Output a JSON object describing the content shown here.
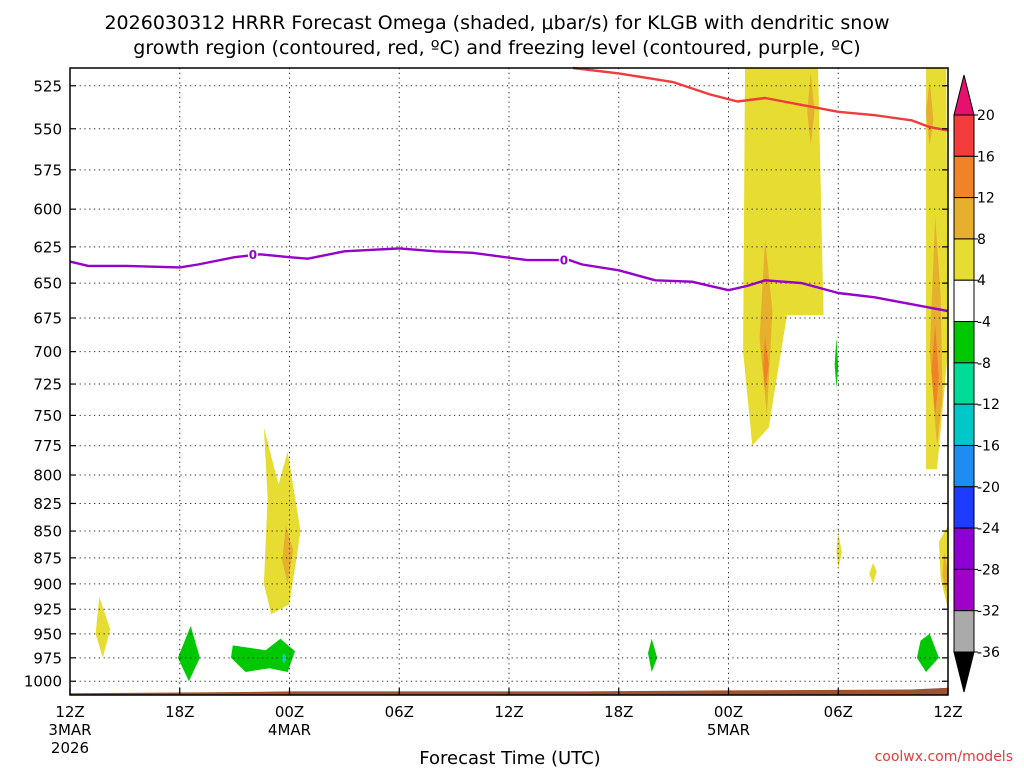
{
  "chart_data": {
    "type": "heatmap",
    "title": [
      "2026030312 HRRR Forecast Omega (shaded, μbar/s) for KLGB with dendritic snow",
      "growth region (contoured, red, ºC) and freezing level (contoured, purple, ºC)"
    ],
    "xlabel": "Forecast Time (UTC)",
    "ylabel": "",
    "x_range_hours": [
      0,
      48
    ],
    "y_range_hpa": [
      515,
      1015
    ],
    "y_scale": "log",
    "grid": true,
    "x_ticks": [
      {
        "hour": 0,
        "label": "12Z",
        "sub1": "3MAR",
        "sub2": "2026"
      },
      {
        "hour": 6,
        "label": "18Z",
        "sub1": "",
        "sub2": ""
      },
      {
        "hour": 12,
        "label": "00Z",
        "sub1": "4MAR",
        "sub2": ""
      },
      {
        "hour": 18,
        "label": "06Z",
        "sub1": "",
        "sub2": ""
      },
      {
        "hour": 24,
        "label": "12Z",
        "sub1": "",
        "sub2": ""
      },
      {
        "hour": 30,
        "label": "18Z",
        "sub1": "",
        "sub2": ""
      },
      {
        "hour": 36,
        "label": "00Z",
        "sub1": "5MAR",
        "sub2": ""
      },
      {
        "hour": 42,
        "label": "06Z",
        "sub1": "",
        "sub2": ""
      },
      {
        "hour": 48,
        "label": "12Z",
        "sub1": "",
        "sub2": ""
      }
    ],
    "y_ticks": [
      "525",
      "550",
      "575",
      "600",
      "625",
      "650",
      "675",
      "700",
      "725",
      "750",
      "775",
      "800",
      "825",
      "850",
      "875",
      "900",
      "925",
      "950",
      "975",
      "1000"
    ],
    "colorbar": {
      "labels": [
        "20",
        "16",
        "12",
        "8",
        "4",
        "-4",
        "-8",
        "-12",
        "-16",
        "-20",
        "-24",
        "-28",
        "-32",
        "-36"
      ],
      "colors": [
        "#e8106e",
        "#f53c3c",
        "#f08228",
        "#e6af2d",
        "#e6dc32",
        "#ffffff",
        "#00c800",
        "#00dc96",
        "#00c8c8",
        "#1e8cf0",
        "#1e3cff",
        "#8c00d2",
        "#a000c8",
        "#aaaaaa",
        "#000000"
      ]
    },
    "series": [
      {
        "name": "dendritic snow growth region (red)",
        "color": "#f03c3c",
        "x": [
          27.5,
          30,
          33,
          35,
          36.5,
          38,
          40,
          42,
          44,
          46,
          47,
          48
        ],
        "y": [
          515,
          518,
          523,
          530,
          534,
          532,
          536,
          540,
          542,
          545,
          549,
          551
        ],
        "label_points": []
      },
      {
        "name": "freezing level (purple)",
        "color": "#9600c8",
        "x": [
          0,
          1,
          3,
          6,
          7,
          9,
          10.4,
          12,
          13,
          15,
          18,
          20,
          22,
          25,
          27.3,
          28,
          30,
          32,
          34,
          36,
          37,
          38,
          40,
          42,
          44,
          46,
          48
        ],
        "y": [
          635,
          638,
          638,
          639,
          637,
          632,
          630,
          632,
          633,
          628,
          626,
          628,
          629,
          634,
          634,
          637,
          641,
          648,
          649,
          655,
          652,
          648,
          650,
          657,
          660,
          665,
          670
        ],
        "label_points": [
          {
            "x": 10.0,
            "y": 630,
            "text": "0"
          },
          {
            "x": 27.0,
            "y": 634,
            "text": "0"
          }
        ]
      }
    ],
    "regions": [
      {
        "color": "#e6dc32",
        "points": [
          [
            36.9,
            515
          ],
          [
            40.9,
            515
          ],
          [
            41.2,
            673
          ],
          [
            39.2,
            673
          ],
          [
            38.2,
            760
          ],
          [
            37.3,
            775
          ],
          [
            36.8,
            700
          ]
        ]
      },
      {
        "color": "#e6dc32",
        "points": [
          [
            46.8,
            515
          ],
          [
            47.9,
            515
          ],
          [
            48.0,
            700
          ],
          [
            47.4,
            795
          ],
          [
            46.8,
            795
          ],
          [
            46.8,
            650
          ]
        ]
      },
      {
        "color": "#e6dc32",
        "points": [
          [
            10.6,
            760
          ],
          [
            11.4,
            808
          ],
          [
            11.9,
            780
          ],
          [
            12.6,
            850
          ],
          [
            12.0,
            920
          ],
          [
            11.0,
            930
          ],
          [
            10.6,
            900
          ],
          [
            10.8,
            820
          ]
        ]
      },
      {
        "color": "#e6dc32",
        "points": [
          [
            1.6,
            913
          ],
          [
            2.2,
            945
          ],
          [
            1.8,
            975
          ],
          [
            1.4,
            950
          ]
        ]
      },
      {
        "color": "#e6dc32",
        "points": [
          [
            47.5,
            860
          ],
          [
            48.0,
            845
          ],
          [
            48.0,
            925
          ],
          [
            47.6,
            895
          ]
        ]
      },
      {
        "color": "#e6dc32",
        "points": [
          [
            42.0,
            852
          ],
          [
            42.2,
            870
          ],
          [
            42.0,
            885
          ],
          [
            41.9,
            868
          ]
        ]
      },
      {
        "color": "#e6dc32",
        "points": [
          [
            43.9,
            880
          ],
          [
            44.1,
            888
          ],
          [
            43.9,
            900
          ],
          [
            43.7,
            890
          ]
        ]
      },
      {
        "color": "#e6af2d",
        "points": [
          [
            40.5,
            518
          ],
          [
            40.7,
            540
          ],
          [
            40.5,
            560
          ],
          [
            40.3,
            540
          ]
        ]
      },
      {
        "color": "#e6af2d",
        "points": [
          [
            38.0,
            620
          ],
          [
            38.4,
            670
          ],
          [
            38.1,
            750
          ],
          [
            37.7,
            690
          ]
        ]
      },
      {
        "color": "#e6af2d",
        "points": [
          [
            47.0,
            522
          ],
          [
            47.2,
            545
          ],
          [
            47.0,
            560
          ],
          [
            46.8,
            540
          ]
        ]
      },
      {
        "color": "#e6af2d",
        "points": [
          [
            47.3,
            605
          ],
          [
            47.6,
            660
          ],
          [
            47.7,
            735
          ],
          [
            47.4,
            775
          ],
          [
            47.0,
            700
          ]
        ]
      },
      {
        "color": "#e6af2d",
        "points": [
          [
            11.8,
            845
          ],
          [
            12.2,
            868
          ],
          [
            11.9,
            900
          ],
          [
            11.6,
            878
          ]
        ]
      },
      {
        "color": "#e6af2d",
        "points": [
          [
            47.8,
            870
          ],
          [
            48.0,
            890
          ],
          [
            47.9,
            910
          ],
          [
            47.7,
            892
          ]
        ]
      },
      {
        "color": "#f08228",
        "points": [
          [
            38.0,
            690
          ],
          [
            38.2,
            710
          ],
          [
            38.0,
            730
          ],
          [
            37.9,
            710
          ]
        ]
      },
      {
        "color": "#f08228",
        "points": [
          [
            47.3,
            680
          ],
          [
            47.5,
            720
          ],
          [
            47.3,
            750
          ],
          [
            47.1,
            715
          ]
        ]
      },
      {
        "color": "#00c800",
        "points": [
          [
            6.6,
            942
          ],
          [
            7.1,
            975
          ],
          [
            6.5,
            1000
          ],
          [
            5.9,
            975
          ]
        ]
      },
      {
        "color": "#00c800",
        "points": [
          [
            8.9,
            962
          ],
          [
            10.7,
            967
          ],
          [
            11.5,
            955
          ],
          [
            12.3,
            968
          ],
          [
            11.9,
            990
          ],
          [
            10.9,
            986
          ],
          [
            9.6,
            990
          ],
          [
            8.8,
            975
          ]
        ]
      },
      {
        "color": "#00c800",
        "points": [
          [
            31.8,
            955
          ],
          [
            32.1,
            975
          ],
          [
            31.8,
            990
          ],
          [
            31.6,
            970
          ]
        ]
      },
      {
        "color": "#00c800",
        "points": [
          [
            41.9,
            690
          ],
          [
            42.0,
            712
          ],
          [
            41.9,
            728
          ],
          [
            41.8,
            710
          ]
        ]
      },
      {
        "color": "#00c800",
        "points": [
          [
            46.5,
            957
          ],
          [
            47.0,
            950
          ],
          [
            47.5,
            975
          ],
          [
            46.8,
            990
          ],
          [
            46.3,
            975
          ]
        ]
      },
      {
        "color": "#00dc96",
        "points": [
          [
            11.7,
            970
          ],
          [
            11.85,
            975
          ],
          [
            11.7,
            982
          ],
          [
            11.55,
            975
          ]
        ]
      }
    ],
    "terrain": {
      "color": "#a0522d",
      "top_hpa": [
        [
          0,
          1013
        ],
        [
          8,
          1012
        ],
        [
          12,
          1011
        ],
        [
          28,
          1011
        ],
        [
          36,
          1010
        ],
        [
          46,
          1009
        ],
        [
          48,
          1007
        ]
      ]
    }
  },
  "credit": "coolwx.com/models"
}
